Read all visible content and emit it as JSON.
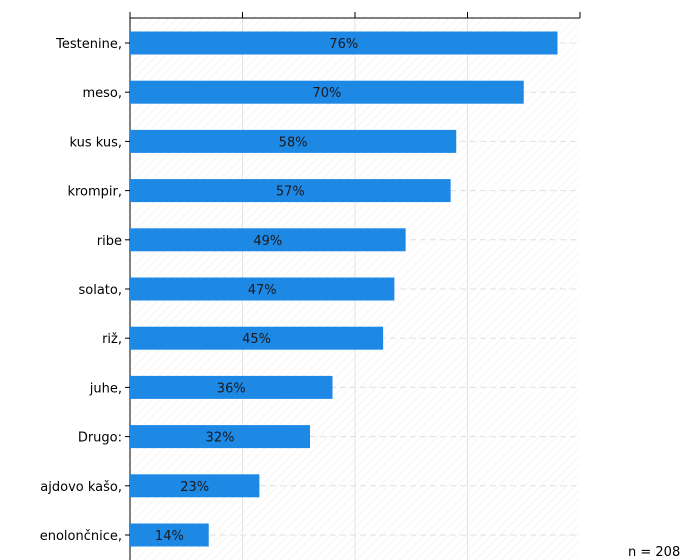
{
  "chart_data": {
    "type": "bar",
    "orientation": "horizontal",
    "categories": [
      "Testenine,",
      "meso,",
      "kus kus,",
      "krompir,",
      "ribe",
      "solato,",
      "riž,",
      "juhe,",
      "Drugo:",
      "ajdovo kašo,",
      "enolončnice,"
    ],
    "values": [
      76,
      70,
      58,
      57,
      49,
      47,
      45,
      36,
      32,
      23,
      14
    ],
    "value_labels": [
      "76%",
      "70%",
      "58%",
      "57%",
      "49%",
      "47%",
      "45%",
      "36%",
      "32%",
      "23%",
      "14%"
    ],
    "xlim": [
      0,
      80
    ],
    "grid": true,
    "bar_color": "#1e88e5",
    "note": "n = 208"
  }
}
